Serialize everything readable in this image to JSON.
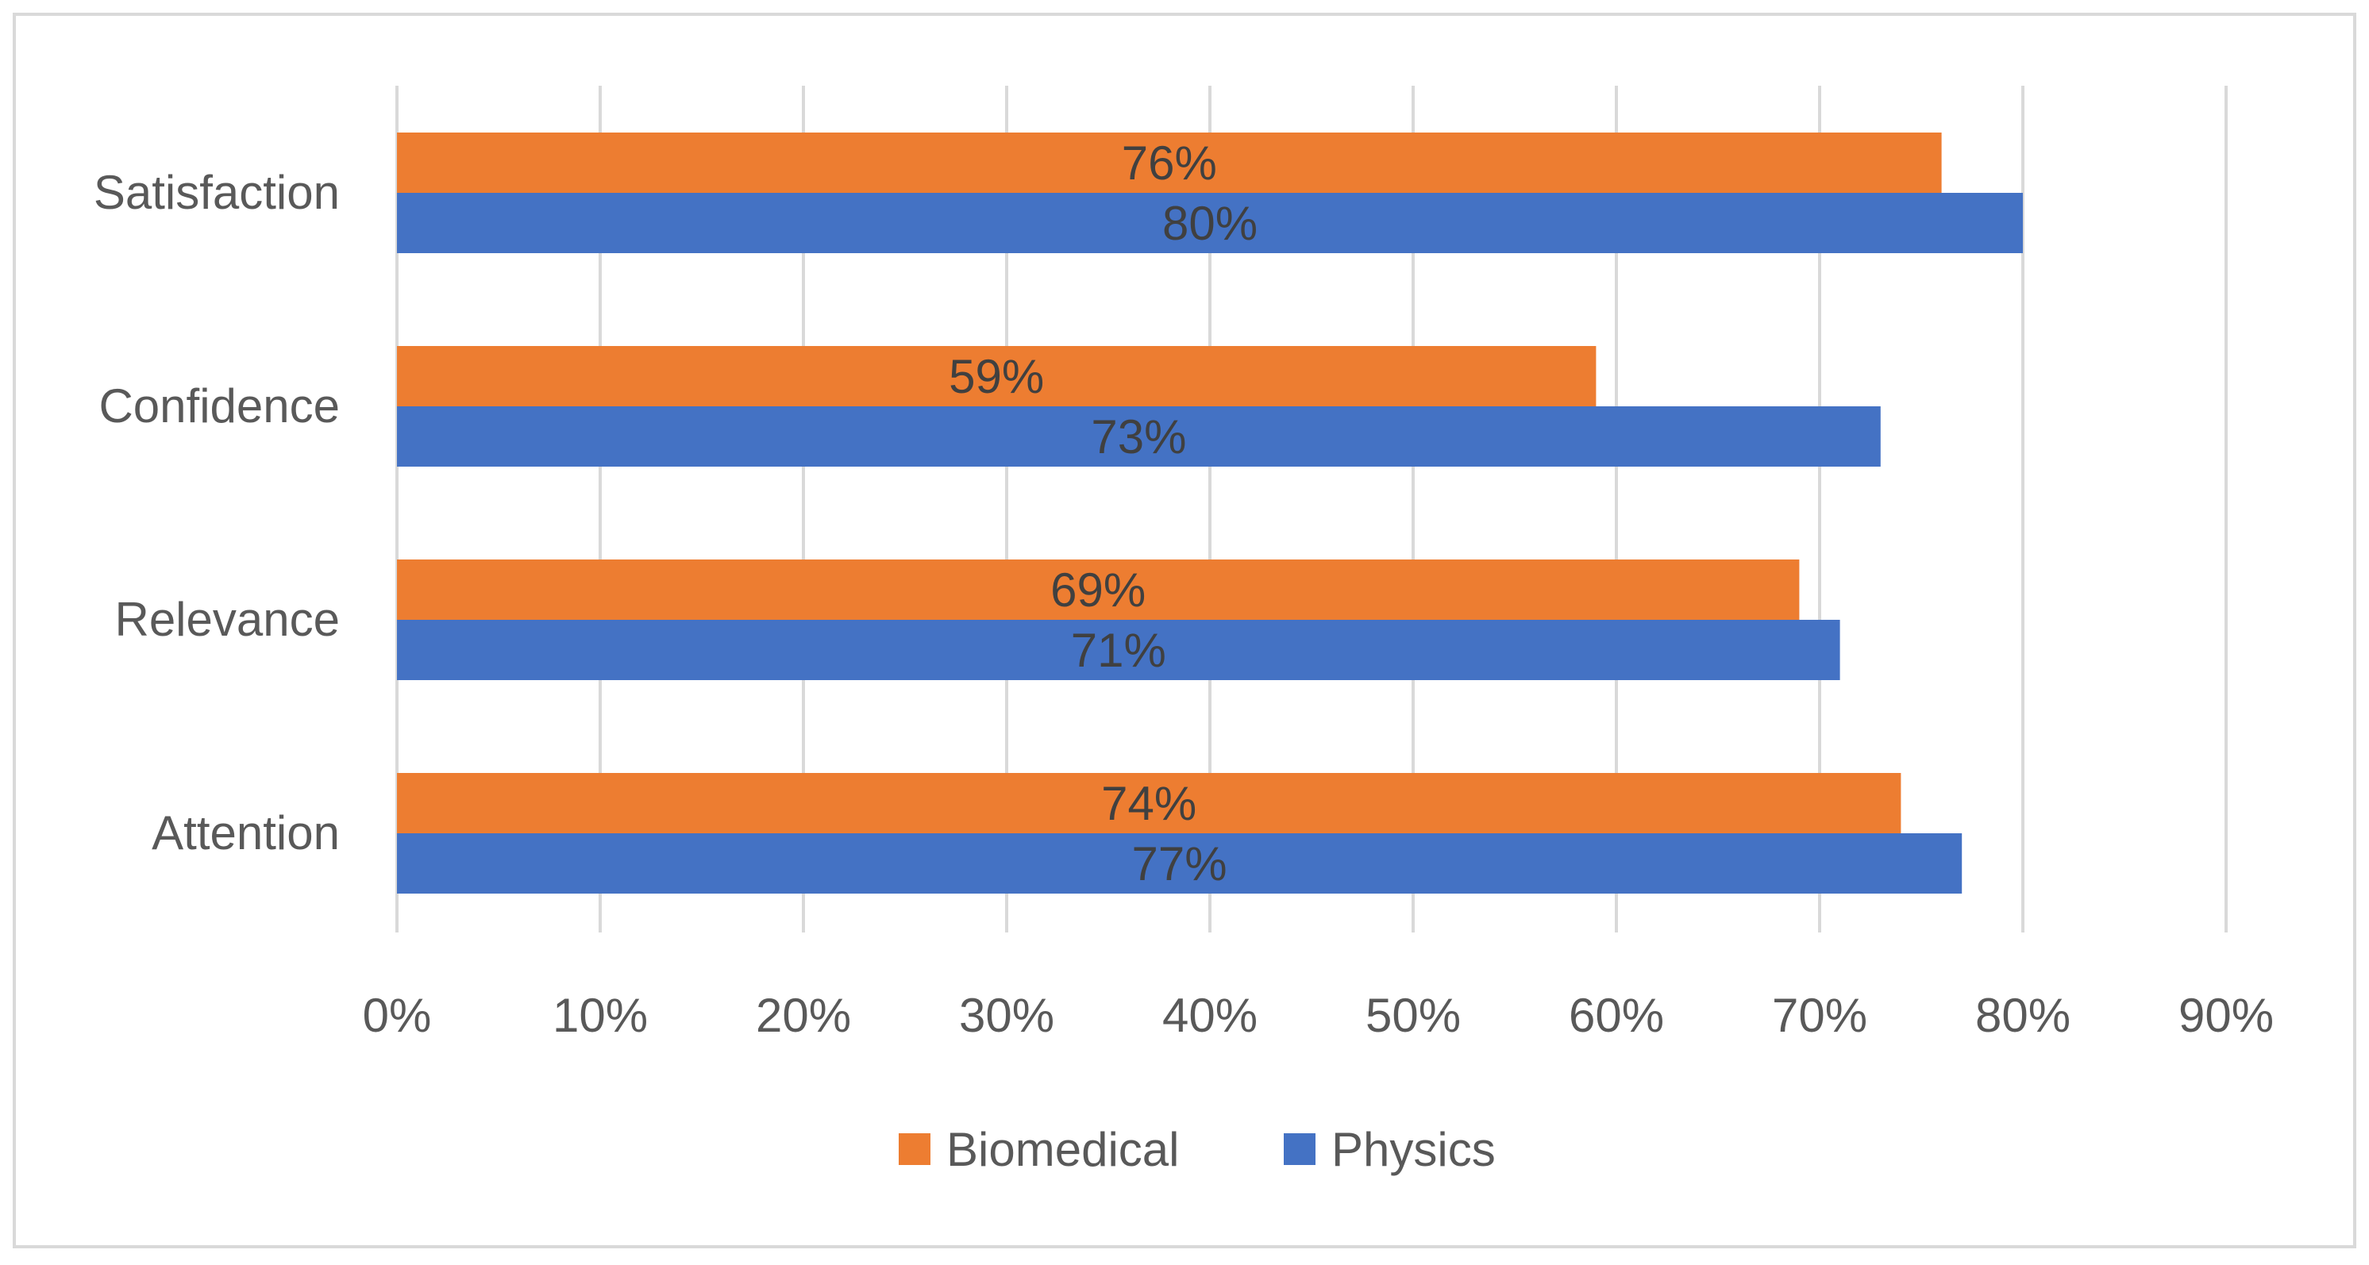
{
  "chart_data": {
    "type": "bar",
    "orientation": "horizontal",
    "categories": [
      "Satisfaction",
      "Confidence",
      "Relevance",
      "Attention"
    ],
    "series": [
      {
        "name": "Biomedical",
        "color": "#ED7D31",
        "values": [
          76,
          59,
          69,
          74
        ],
        "labels": [
          "76%",
          "59%",
          "69%",
          "74%"
        ]
      },
      {
        "name": "Physics",
        "color": "#4472C4",
        "values": [
          80,
          73,
          71,
          77
        ],
        "labels": [
          "80%",
          "73%",
          "71%",
          "77%"
        ]
      }
    ],
    "x_ticks": [
      "0%",
      "10%",
      "20%",
      "30%",
      "40%",
      "50%",
      "60%",
      "70%",
      "80%",
      "90%"
    ],
    "xlim": [
      0,
      90
    ],
    "title": "",
    "xlabel": "",
    "ylabel": "",
    "grid": true,
    "legend_position": "bottom",
    "colors": {
      "border": "#D9D9D9",
      "grid": "#D9D9D9",
      "text": "#595959",
      "label": "#404040"
    }
  }
}
